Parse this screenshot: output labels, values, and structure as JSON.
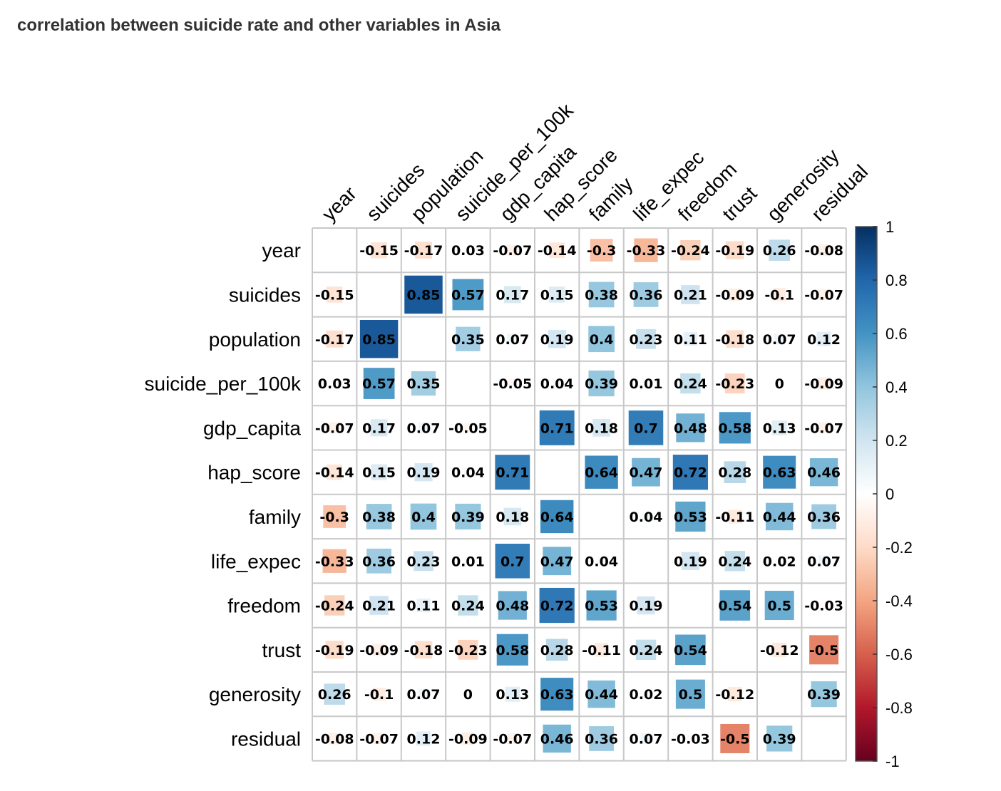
{
  "chart_title": "correlation between suicide rate and other variables in Asia",
  "chart_data": {
    "type": "heatmap",
    "title": "correlation between suicide rate and other variables in Asia",
    "variables": [
      "year",
      "suicides",
      "population",
      "suicide_per_100k",
      "gdp_capita",
      "hap_score",
      "family",
      "life_expec",
      "freedom",
      "trust",
      "generosity",
      "residual"
    ],
    "matrix": [
      [
        null,
        -0.15,
        -0.17,
        0.03,
        -0.07,
        -0.14,
        -0.3,
        -0.33,
        -0.24,
        -0.19,
        0.26,
        -0.08
      ],
      [
        -0.15,
        null,
        0.85,
        0.57,
        0.17,
        0.15,
        0.38,
        0.36,
        0.21,
        -0.09,
        -0.1,
        -0.07
      ],
      [
        -0.17,
        0.85,
        null,
        0.35,
        0.07,
        0.19,
        0.4,
        0.23,
        0.11,
        -0.18,
        0.07,
        0.12
      ],
      [
        0.03,
        0.57,
        0.35,
        null,
        -0.05,
        0.04,
        0.39,
        0.01,
        0.24,
        -0.23,
        0,
        -0.09
      ],
      [
        -0.07,
        0.17,
        0.07,
        -0.05,
        null,
        0.71,
        0.18,
        0.7,
        0.48,
        0.58,
        0.13,
        -0.07
      ],
      [
        -0.14,
        0.15,
        0.19,
        0.04,
        0.71,
        null,
        0.64,
        0.47,
        0.72,
        0.28,
        0.63,
        0.46
      ],
      [
        -0.3,
        0.38,
        0.4,
        0.39,
        0.18,
        0.64,
        null,
        0.04,
        0.53,
        -0.11,
        0.44,
        0.36
      ],
      [
        -0.33,
        0.36,
        0.23,
        0.01,
        0.7,
        0.47,
        0.04,
        null,
        0.19,
        0.24,
        0.02,
        0.07
      ],
      [
        -0.24,
        0.21,
        0.11,
        0.24,
        0.48,
        0.72,
        0.53,
        0.19,
        null,
        0.54,
        0.5,
        -0.03
      ],
      [
        -0.19,
        -0.09,
        -0.18,
        -0.23,
        0.58,
        0.28,
        -0.11,
        0.24,
        0.54,
        null,
        -0.12,
        -0.5
      ],
      [
        0.26,
        -0.1,
        0.07,
        0,
        0.13,
        0.63,
        0.44,
        0.02,
        0.5,
        -0.12,
        null,
        0.39
      ],
      [
        -0.08,
        -0.07,
        0.12,
        -0.09,
        -0.07,
        0.46,
        0.36,
        0.07,
        -0.03,
        -0.5,
        0.39,
        null
      ]
    ],
    "colorbar": {
      "range": [
        -1,
        1
      ],
      "ticks": [
        "1",
        "0.8",
        "0.6",
        "0.4",
        "0.2",
        "0",
        "-0.2",
        "-0.4",
        "-0.6",
        "-0.8",
        "-1"
      ],
      "tick_values": [
        1,
        0.8,
        0.6,
        0.4,
        0.2,
        0,
        -0.2,
        -0.4,
        -0.6,
        -0.8,
        -1
      ],
      "colors": [
        "#67001F",
        "#B2182B",
        "#D6604D",
        "#F4A582",
        "#FDDBC7",
        "#FFFFFF",
        "#D1E5F0",
        "#92C5DE",
        "#4393C3",
        "#2166AC",
        "#053061"
      ]
    },
    "grid": true,
    "diagonal": "blank",
    "legend": "right"
  }
}
